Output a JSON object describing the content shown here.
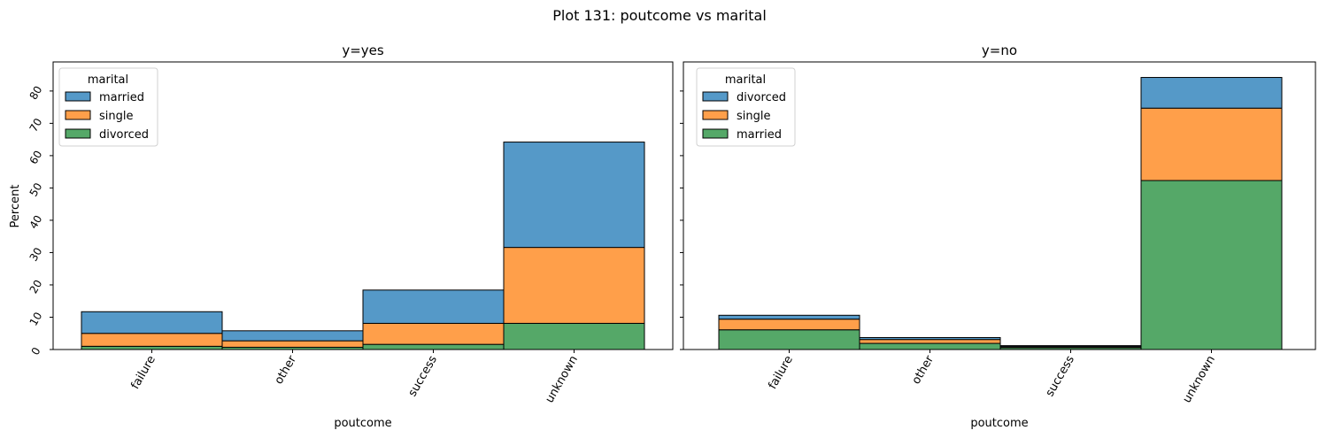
{
  "figure": {
    "title": "Plot 131: poutcome vs marital"
  },
  "chart_data": [
    {
      "type": "bar",
      "stacked": true,
      "title": "y=yes",
      "xlabel": "poutcome",
      "ylabel": "Percent",
      "categories": [
        "failure",
        "other",
        "success",
        "unknown"
      ],
      "ylim": [
        0,
        89
      ],
      "yticks": [
        "0",
        "10",
        "20",
        "30",
        "40",
        "50",
        "60",
        "70",
        "80"
      ],
      "legend": {
        "title": "marital",
        "position": "top-left",
        "entries": [
          "married",
          "single",
          "divorced"
        ]
      },
      "series": [
        {
          "name": "divorced",
          "color": "#55a868",
          "values": [
            1.0,
            0.7,
            1.6,
            8.1
          ]
        },
        {
          "name": "single",
          "color": "#ff9f4a",
          "values": [
            4.0,
            2.0,
            6.5,
            23.5
          ]
        },
        {
          "name": "married",
          "color": "#5599c8",
          "values": [
            6.7,
            3.1,
            10.3,
            32.6
          ]
        }
      ]
    },
    {
      "type": "bar",
      "stacked": true,
      "title": "y=no",
      "xlabel": "poutcome",
      "ylabel": "",
      "categories": [
        "failure",
        "other",
        "success",
        "unknown"
      ],
      "ylim": [
        0,
        89
      ],
      "yticks": [],
      "legend": {
        "title": "marital",
        "position": "top-left",
        "entries": [
          "divorced",
          "single",
          "married"
        ]
      },
      "series": [
        {
          "name": "married",
          "color": "#55a868",
          "values": [
            6.1,
            1.9,
            0.6,
            52.3
          ]
        },
        {
          "name": "single",
          "color": "#ff9f4a",
          "values": [
            3.3,
            1.2,
            0.3,
            22.4
          ]
        },
        {
          "name": "divorced",
          "color": "#5599c8",
          "values": [
            1.2,
            0.6,
            0.3,
            9.5
          ]
        }
      ]
    }
  ]
}
